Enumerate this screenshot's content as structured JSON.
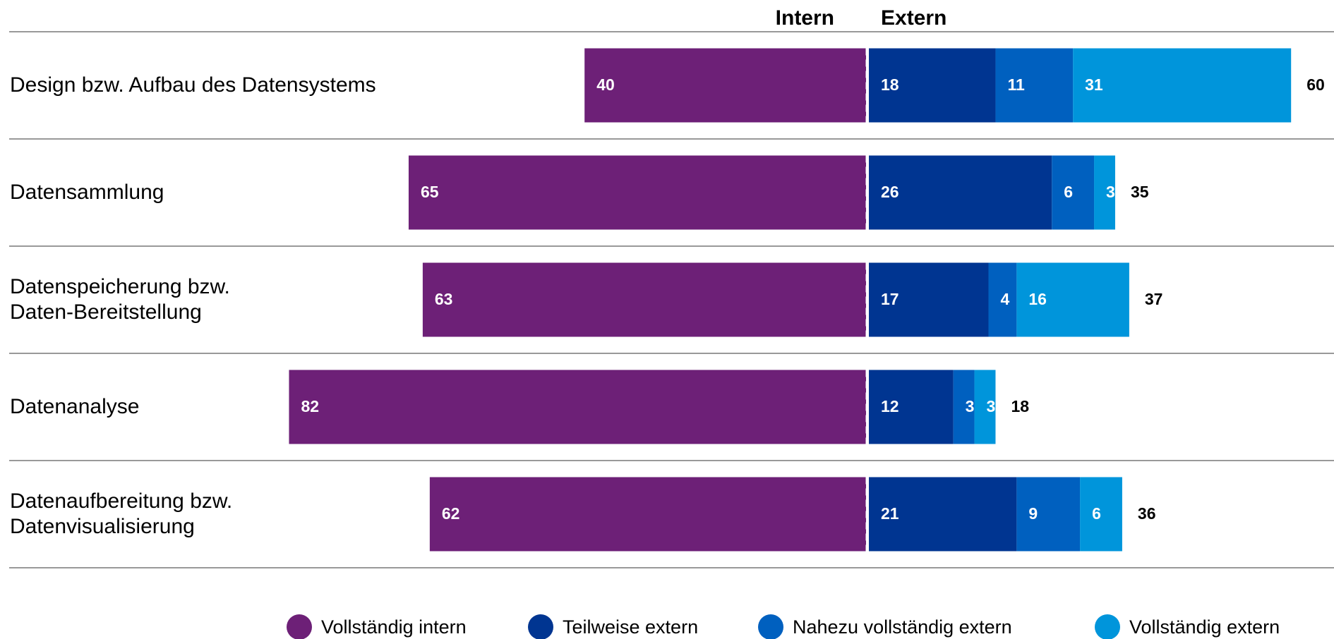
{
  "chart_data": {
    "type": "diverging-bar",
    "left_header": "Intern",
    "right_header": "Extern",
    "categories": [
      "Design bzw. Aufbau des Datensystems",
      "Datensammlung",
      "Datenspeicherung bzw.\nDaten-Bereitstellung",
      "Datenanalyse",
      "Datenaufbereitung bzw.\nDatenvisualisierung"
    ],
    "series": [
      {
        "name": "Vollständig intern",
        "color": "#6d2077",
        "side": "left",
        "values": [
          40,
          65,
          63,
          82,
          62
        ]
      },
      {
        "name": "Teilweise extern",
        "color": "#003591",
        "side": "right",
        "values": [
          18,
          26,
          17,
          12,
          21
        ]
      },
      {
        "name": "Nahezu vollständig extern",
        "color": "#0060bf",
        "side": "right",
        "values": [
          11,
          6,
          4,
          3,
          9
        ]
      },
      {
        "name": "Vollständig extern",
        "color": "#0095db",
        "side": "right",
        "values": [
          31,
          3,
          16,
          3,
          6
        ]
      }
    ],
    "totals": [
      60,
      35,
      37,
      18,
      36
    ]
  }
}
